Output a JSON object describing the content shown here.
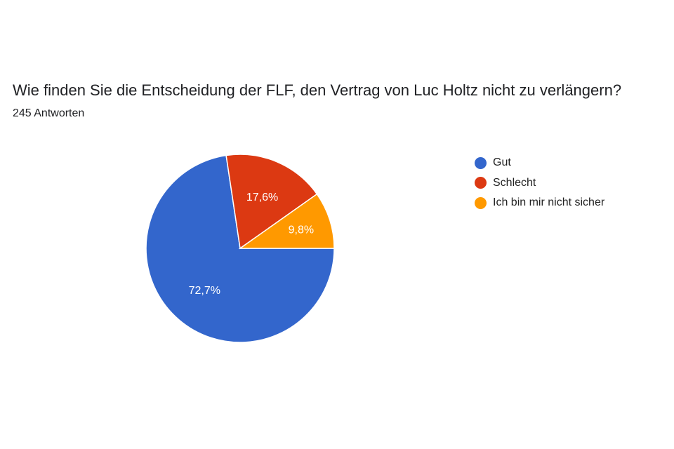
{
  "header": {
    "title": "Wie finden Sie die Entscheidung der FLF, den Vertrag von Luc Holtz nicht zu verlängern?",
    "response_count": "245 Antworten"
  },
  "chart_data": {
    "type": "pie",
    "title": "Wie finden Sie die Entscheidung der FLF, den Vertrag von Luc Holtz nicht zu verlängern?",
    "categories": [
      "Gut",
      "Schlecht",
      "Ich bin mir nicht sicher"
    ],
    "values": [
      72.7,
      17.6,
      9.8
    ],
    "labels": [
      "72,7%",
      "17,6%",
      "9,8%"
    ],
    "colors": [
      "#3366CC",
      "#DC3912",
      "#FF9900"
    ],
    "legend": "right"
  }
}
